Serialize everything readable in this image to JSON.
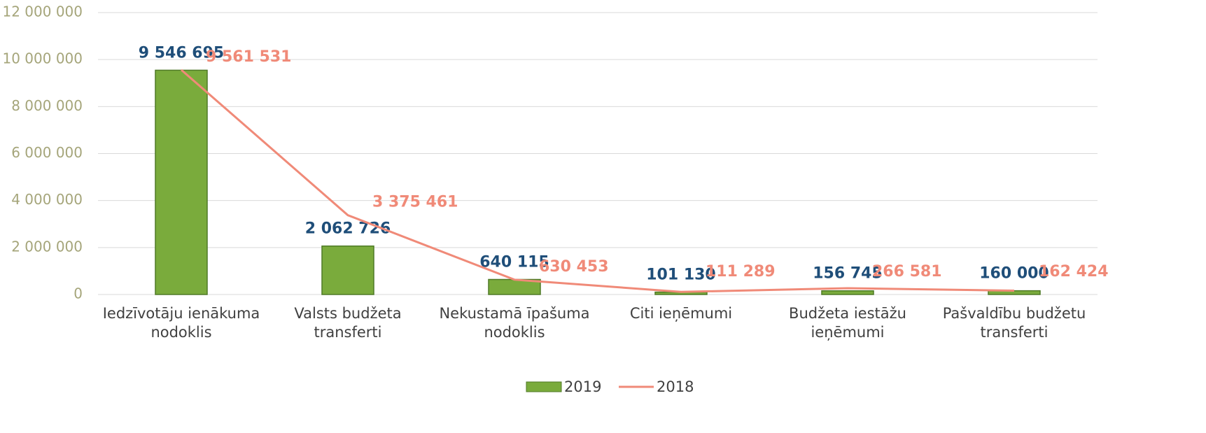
{
  "chart_data": {
    "type": "bar_line",
    "categories": [
      "Iedzīvotāju ienākuma nodoklis",
      "Valsts budžeta transferti",
      "Nekustamā īpašuma nodoklis",
      "Citi ieņēmumi",
      "Budžeta iestāžu ieņēmumi",
      "Pašvaldību budžetu transferti"
    ],
    "series": [
      {
        "name": "2019",
        "type": "bar",
        "color": "#7aab3c",
        "label_color": "#1f4e79",
        "values": [
          9546695,
          2062726,
          640115,
          101130,
          156745,
          160000
        ],
        "value_labels": [
          "9 546 695",
          "2 062 726",
          "640 115",
          "101 130",
          "156 745",
          "160 000"
        ]
      },
      {
        "name": "2018",
        "type": "line",
        "color": "#f08a78",
        "label_color": "#f08a78",
        "values": [
          9561531,
          3375461,
          630453,
          111289,
          266581,
          162424
        ],
        "value_labels": [
          "9 561 531",
          "3 375 461",
          "630 453",
          "111 289",
          "266 581",
          "162 424"
        ]
      }
    ],
    "ylim": [
      0,
      12000000
    ],
    "yticks": [
      0,
      {
        "value": 2000000,
        "label": "2 000 000"
      },
      {
        "value": 4000000,
        "label": "4 000 000"
      },
      {
        "value": 6000000,
        "label": "6 000 000"
      },
      {
        "value": 8000000,
        "label": "8 000 000"
      },
      {
        "value": 10000000,
        "label": "10 000 000"
      },
      {
        "value": 12000000,
        "label": "12 000 000"
      }
    ],
    "grid": true,
    "legend": "bottom"
  }
}
